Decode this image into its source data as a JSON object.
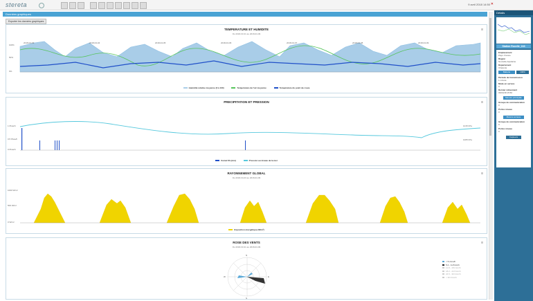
{
  "app": {
    "logo": "stereta",
    "datetime": "9 avril 2018 14:50"
  },
  "tab": {
    "label": "Données graphiques"
  },
  "export_button": "Exporter les données graphiques",
  "charts": {
    "temperature": {
      "title": "TEMPERATURE ET HUMIDITE",
      "subtitle": "Du 2018-03-31 au 2018-04-09",
      "legend": [
        "Humidité relative moyenne (0 à 100)",
        "Température de l'air moyenne",
        "Température du point de rosée"
      ],
      "dates": [
        "2018-04-03",
        "2018-04-04",
        "2018-04-05",
        "2018-04-06",
        "2018-04-07",
        "2018-04-08",
        "2018-04-09"
      ],
      "times": [
        "00:00",
        "06:00",
        "12:00",
        "18:00",
        "00:00",
        "06:00",
        "12:00",
        "18:00",
        "00:00",
        "06:00",
        "12:00",
        "18:00",
        "00:00",
        "06:00",
        "12:00",
        "18:00",
        "00:00",
        "06:00",
        "12:00",
        "18:00",
        "00:00",
        "06:00",
        "12:00",
        "18:00",
        "00:00",
        "06:00",
        "12:00",
        "18:00"
      ],
      "y_left": [
        "100%",
        "50%",
        "0%"
      ]
    },
    "precipitation": {
      "title": "PRECIPITATION ET PRESSION",
      "legend": [
        "Cumul 6h (mm)",
        "Pression au niveau de la mer"
      ],
      "y_left": [
        "1 Pluie/h",
        "0.5 Pluie/h",
        "0 Pluie/h"
      ],
      "y_right": [
        "1015 hPa",
        "1005 hPa"
      ]
    },
    "radiation": {
      "title": "RAYONNEMENT GLOBAL",
      "subtitle": "Du 2018-04-03 au 2018-04-09",
      "legend": [
        "Exposition énergétique (W/m²)"
      ],
      "y_left": [
        "1000 W/m²",
        "500 W/m²",
        "0 W/m²"
      ]
    },
    "wind": {
      "title": "ROSE DES VENTS",
      "subtitle": "Du 2018-03-31 au 2018-04-09",
      "directions": [
        "N",
        "NNE",
        "NE",
        "ENE",
        "E",
        "ESE",
        "SE",
        "SSE",
        "S",
        "SSW",
        "SW",
        "WSW",
        "W",
        "WNW",
        "NW",
        "NNW"
      ],
      "legend": [
        "< 5.4 km/h",
        "5.4 - 11.8 km/h",
        "11.8 - 18.2 km/h",
        "18.2 - 24.5 km/h",
        "24.5 - 30.9 km/h",
        "> 30.9 km/h"
      ]
    }
  },
  "sidebar": {
    "header": "Détails",
    "station": "Station Rocelle_243",
    "fields": [
      {
        "label": "Emplacement",
        "value": "Pays: France"
      },
      {
        "label": "Région",
        "value": "Nouvelle-Aquitaine"
      },
      {
        "label": "Département",
        "value": "Charente"
      },
      {
        "label": "Période de transmission",
        "value": "1 minute"
      },
      {
        "label": "Mode en service",
        "value": "0"
      },
      {
        "label": "Dernier relèvement",
        "value": "03/04/18 15:50"
      }
    ],
    "battery_label": "Batterie",
    "battery_value": "100%",
    "buttons": [
      "Mesure principale",
      "Mesure annexe",
      "Capteurs"
    ],
    "extra": [
      {
        "label": "Groupe de communication",
        "value": "0"
      },
      {
        "label": "Portes réseau",
        "value": "0"
      },
      {
        "label": "Groupe de communication",
        "value": "0"
      },
      {
        "label": "Portes réseau",
        "value": "0"
      }
    ]
  }
}
